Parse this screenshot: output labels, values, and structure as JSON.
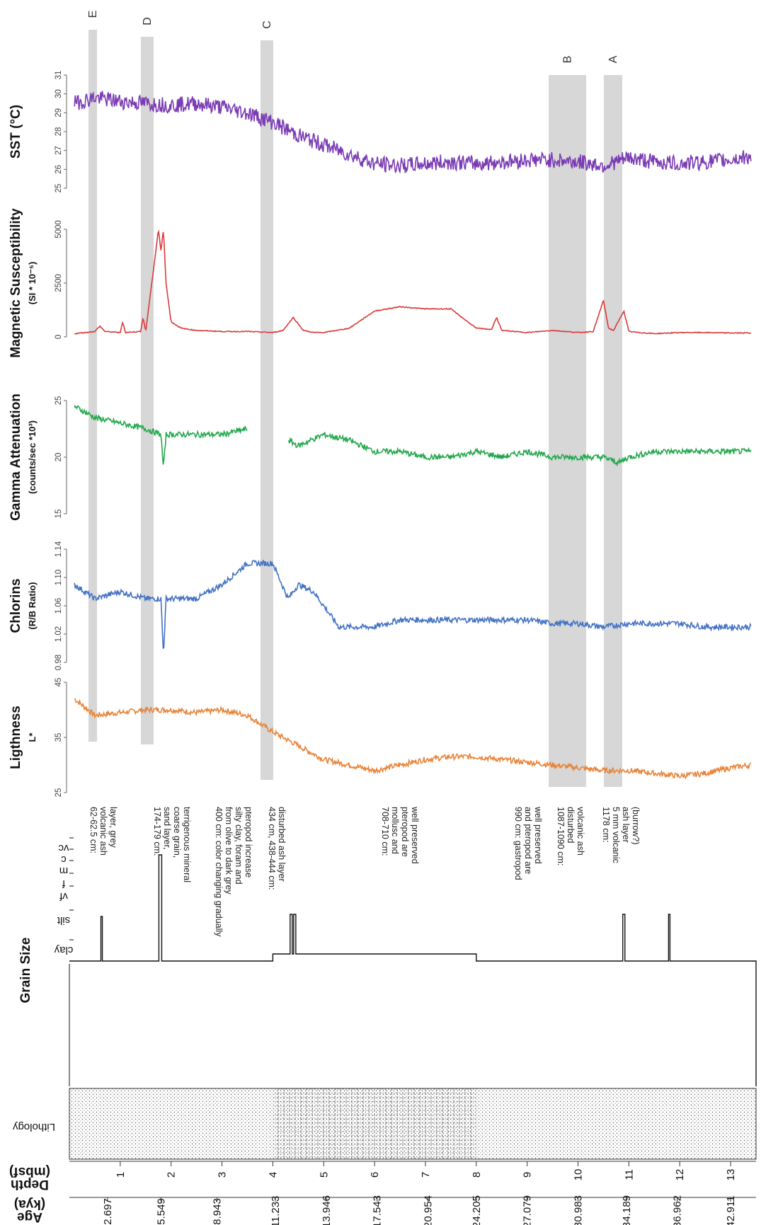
{
  "chart_data": {
    "type": "line",
    "orientation": "rotated-90",
    "x_axis": {
      "label": "Depth",
      "unit": "(mbsf)",
      "range": [
        0,
        13.5
      ],
      "ticks": [
        1,
        2,
        3,
        4,
        5,
        6,
        7,
        8,
        9,
        10,
        11,
        12,
        13
      ]
    },
    "age_axis": {
      "label": "Age",
      "unit": "(kya)",
      "ticks": [
        "2.697",
        "5.549",
        "8.943",
        "11.233",
        "13.946",
        "17.543",
        "20.954",
        "24.205",
        "27.079",
        "30.983",
        "34.189",
        "36.962",
        "42.911"
      ]
    },
    "panels": [
      {
        "id": "lightness",
        "title": "Ligthness",
        "subtitle": "L*",
        "color": "#e8843a",
        "yrange": [
          25,
          45
        ],
        "yticks": [
          "25",
          "35",
          "45"
        ],
        "series": {
          "depth": [
            0.1,
            0.5,
            1.0,
            1.5,
            2.0,
            2.5,
            3.0,
            3.5,
            4.0,
            4.5,
            5.0,
            5.5,
            6.0,
            6.5,
            7.0,
            7.5,
            8.0,
            8.5,
            9.0,
            9.5,
            10.0,
            10.5,
            11.0,
            11.5,
            12.0,
            12.5,
            13.0,
            13.4
          ],
          "value": [
            42,
            39,
            39.5,
            40,
            40,
            39.5,
            40,
            39,
            36,
            33.5,
            31,
            30,
            29,
            30,
            31,
            31.5,
            31.5,
            31,
            30.5,
            30,
            29.5,
            29,
            29,
            28.5,
            28,
            28.5,
            29.5,
            30
          ]
        }
      },
      {
        "id": "chlorins",
        "title": "Chlorins",
        "subtitle": "(R/B Ratio)",
        "color": "#4472c4",
        "yrange": [
          0.98,
          1.14
        ],
        "yticks": [
          "0.98",
          "1.02",
          "1.06",
          "1.10",
          "1.14"
        ],
        "series": {
          "depth": [
            0.1,
            0.5,
            1.0,
            1.5,
            1.8,
            1.85,
            1.9,
            2.0,
            2.5,
            3.0,
            3.5,
            4.0,
            4.3,
            4.5,
            4.8,
            5.0,
            5.3,
            5.7,
            6.0,
            6.5,
            7.0,
            7.5,
            8.0,
            8.5,
            9.0,
            9.5,
            10.0,
            10.5,
            11.0,
            11.5,
            12.0,
            12.5,
            13.0,
            13.4
          ],
          "value": [
            1.09,
            1.07,
            1.08,
            1.07,
            1.07,
            0.99,
            1.07,
            1.07,
            1.07,
            1.09,
            1.12,
            1.12,
            1.07,
            1.09,
            1.08,
            1.06,
            1.03,
            1.03,
            1.03,
            1.04,
            1.04,
            1.04,
            1.04,
            1.04,
            1.04,
            1.035,
            1.035,
            1.03,
            1.035,
            1.035,
            1.035,
            1.03,
            1.03,
            1.03
          ]
        }
      },
      {
        "id": "gamma",
        "title": "Gamma Attenuation",
        "subtitle": "(counts/sec *10³)",
        "color": "#23a84d",
        "yrange": [
          15,
          25
        ],
        "yticks": [
          "15",
          "20",
          "25"
        ],
        "series": {
          "depth": [
            0.1,
            0.5,
            1.0,
            1.5,
            1.8,
            1.85,
            1.9,
            2.0,
            2.5,
            3.0,
            3.5,
            3.7,
            4.3,
            4.5,
            5.0,
            5.5,
            6.0,
            6.5,
            7.0,
            7.5,
            8.0,
            8.5,
            9.0,
            9.5,
            10.0,
            10.5,
            10.8,
            11.0,
            11.5,
            12.0,
            12.5,
            13.0,
            13.4
          ],
          "value": [
            24.5,
            23.5,
            23,
            22.5,
            22,
            19,
            22,
            22,
            22,
            22,
            22.5,
            null,
            21.5,
            21,
            22,
            21.5,
            20.5,
            20.5,
            20,
            20,
            20.5,
            20,
            20.5,
            20,
            20,
            20,
            19.5,
            20,
            20.5,
            20.5,
            20.5,
            20.5,
            20.5
          ]
        }
      },
      {
        "id": "magsus",
        "title": "Magnetic Susceptibility",
        "subtitle": "(SI * 10⁻⁵)",
        "color": "#d93a3a",
        "yrange": [
          0,
          5000
        ],
        "yticks": [
          "0",
          "2500",
          "5000"
        ],
        "series": {
          "depth": [
            0.1,
            0.5,
            0.6,
            0.7,
            1.0,
            1.05,
            1.1,
            1.4,
            1.45,
            1.5,
            1.7,
            1.75,
            1.8,
            1.85,
            1.9,
            2.0,
            2.2,
            2.5,
            3.0,
            3.5,
            4.0,
            4.2,
            4.4,
            4.6,
            4.8,
            5.0,
            5.5,
            6.0,
            6.5,
            7.0,
            7.5,
            8.0,
            8.3,
            8.4,
            8.5,
            9.0,
            9.5,
            10.0,
            10.3,
            10.5,
            10.6,
            10.7,
            10.9,
            11.0,
            11.2,
            11.5,
            12.0,
            12.5,
            13.0,
            13.4
          ],
          "value": [
            150,
            250,
            500,
            250,
            200,
            700,
            200,
            250,
            900,
            250,
            4000,
            5000,
            4000,
            5000,
            2500,
            700,
            400,
            300,
            250,
            250,
            200,
            300,
            900,
            300,
            200,
            200,
            400,
            1200,
            1400,
            1300,
            1300,
            400,
            350,
            900,
            300,
            200,
            300,
            200,
            250,
            1700,
            400,
            300,
            1200,
            250,
            200,
            150,
            200,
            200,
            180,
            180
          ]
        }
      },
      {
        "id": "sst",
        "title": "SST (°C)",
        "subtitle": "",
        "color": "#7a3bb4",
        "yrange": [
          25,
          31
        ],
        "yticks": [
          "25",
          "26",
          "27",
          "28",
          "29",
          "30",
          "31"
        ],
        "series": {
          "depth": [
            0.1,
            0.5,
            1.0,
            1.5,
            2.0,
            2.5,
            3.0,
            3.5,
            4.0,
            4.5,
            5.0,
            5.5,
            6.0,
            6.5,
            7.0,
            7.5,
            8.0,
            8.5,
            9.0,
            9.5,
            10.0,
            10.5,
            11.0,
            11.5,
            12.0,
            12.5,
            13.0,
            13.4
          ],
          "value": [
            29.5,
            29.8,
            29.6,
            29.5,
            29.4,
            29.5,
            29.3,
            29,
            28.5,
            27.8,
            27.3,
            26.8,
            26.3,
            26.2,
            26.3,
            26.4,
            26.3,
            26.4,
            26.5,
            26.5,
            26.4,
            26.2,
            26.6,
            26.4,
            26.3,
            26.4,
            26.5,
            26.7
          ]
        }
      }
    ],
    "bands": [
      {
        "label": "E",
        "from": 0.5,
        "to": 0.62
      },
      {
        "label": "D",
        "from": 1.74,
        "to": 1.79
      },
      {
        "label": "C",
        "from": 4.34,
        "to": 4.44
      },
      {
        "label": "B",
        "from": 10.87,
        "to": 10.9
      },
      {
        "label": "A",
        "from": 11.78,
        "to": 11.8
      }
    ],
    "lithology": {
      "label": "Lithology"
    },
    "grain_size": {
      "label": "Grain Size",
      "classes": [
        "clay",
        "silt",
        "vf",
        "f",
        "m",
        "c",
        "vc"
      ]
    },
    "annotations": [
      "62-62.5 cm: volcanic ash layer, grey",
      "174-179 cm: sand layer, coarse grain, terrigenous mineral",
      "400 cm: color changing gradually from olive to dark grey silty clay, foram and pteropod increase",
      "434 cm, 438-444 cm: disturbed ash layer",
      "708-710 cm: mollusc and pteropod are well preserved",
      "990 cm: gastropod and pteropod are well preserved",
      "1087-1090 cm: disturbed volcanic ash",
      "1178 cm: 5 mm volcanic ash layer (burrow?)"
    ]
  }
}
